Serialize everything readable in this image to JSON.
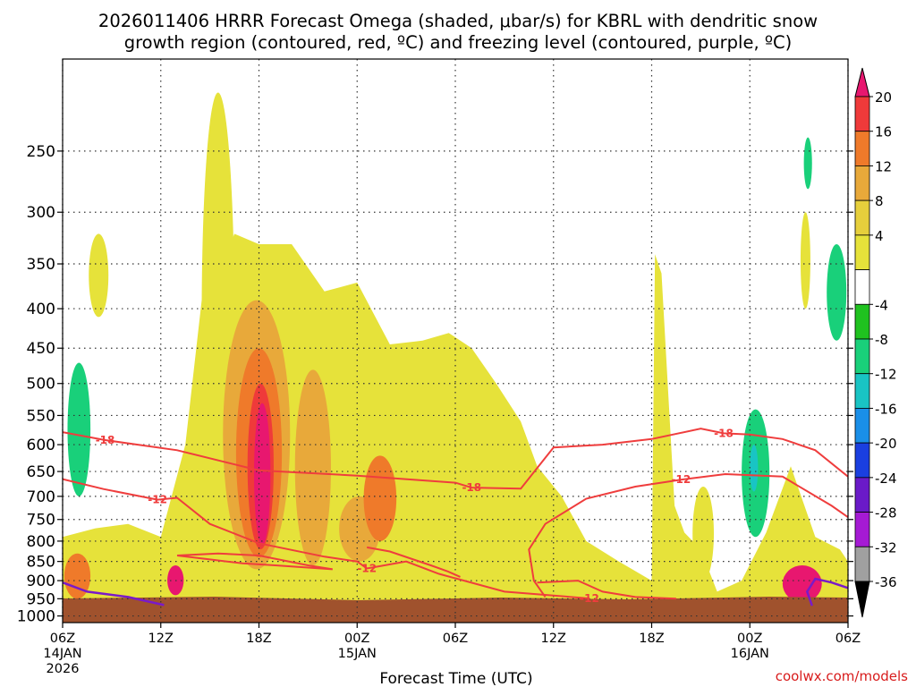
{
  "chart_data": {
    "type": "heatmap",
    "title_line1": "2026011406 HRRR Forecast Omega (shaded, μbar/s) for KBRL with dendritic snow",
    "title_line2": "growth region (contoured, red, ºC) and freezing level (contoured, purple, ºC)",
    "xlabel": "Forecast Time (UTC)",
    "credit": "coolwx.com/models",
    "x_range_hours": [
      0,
      48
    ],
    "y_range_hpa": [
      1020,
      190
    ],
    "y_ticks": [
      250,
      300,
      350,
      400,
      450,
      500,
      550,
      600,
      650,
      700,
      750,
      800,
      850,
      900,
      950,
      1000
    ],
    "x_ticks": [
      {
        "hour": 0,
        "label": "06Z",
        "sub": "14JAN",
        "sub2": "2026"
      },
      {
        "hour": 6,
        "label": "12Z",
        "sub": "",
        "sub2": ""
      },
      {
        "hour": 12,
        "label": "18Z",
        "sub": "",
        "sub2": ""
      },
      {
        "hour": 18,
        "label": "00Z",
        "sub": "15JAN",
        "sub2": ""
      },
      {
        "hour": 24,
        "label": "06Z",
        "sub": "",
        "sub2": ""
      },
      {
        "hour": 30,
        "label": "12Z",
        "sub": "",
        "sub2": ""
      },
      {
        "hour": 36,
        "label": "18Z",
        "sub": "",
        "sub2": ""
      },
      {
        "hour": 42,
        "label": "00Z",
        "sub": "16JAN",
        "sub2": ""
      },
      {
        "hour": 48,
        "label": "06Z",
        "sub": "",
        "sub2": ""
      }
    ],
    "colorbar": {
      "levels": [
        20,
        16,
        12,
        8,
        4,
        -4,
        -8,
        -12,
        -16,
        -20,
        -24,
        -28,
        -32,
        -36
      ],
      "colors": [
        "#e8176f",
        "#ef3a3a",
        "#ef7a2a",
        "#e8a93a",
        "#e6cf3c",
        "#e6e23a",
        "#ffffff",
        "#1fc21f",
        "#19d07a",
        "#19c4c4",
        "#1a8fe8",
        "#1a3fe0",
        "#6a1ac8",
        "#a51ad4",
        "#a0a0a0",
        "#000000"
      ]
    },
    "legend": {
      "position": "right"
    },
    "series": [
      {
        "name": "omega (μbar/s)",
        "kind": "shaded",
        "blobs": [
          {
            "value": 4,
            "hours": [
              8.5,
              10.5
            ],
            "hpa": [
              800,
              210
            ]
          },
          {
            "value": 8,
            "hours": [
              9.8,
              13.9
            ],
            "hpa": [
              870,
              390
            ]
          },
          {
            "value": 12,
            "hours": [
              10.6,
              13.4
            ],
            "hpa": [
              840,
              450
            ]
          },
          {
            "value": 16,
            "hours": [
              11.3,
              12.9
            ],
            "hpa": [
              820,
              500
            ]
          },
          {
            "value": 20,
            "hours": [
              11.7,
              12.7
            ],
            "hpa": [
              810,
              530
            ]
          },
          {
            "value": 8,
            "hours": [
              14.2,
              16.4
            ],
            "hpa": [
              860,
              480
            ]
          },
          {
            "value": 8,
            "hours": [
              16.9,
              19.4
            ],
            "hpa": [
              850,
              700
            ]
          },
          {
            "value": 12,
            "hours": [
              18.4,
              20.4
            ],
            "hpa": [
              800,
              620
            ]
          },
          {
            "value": 20,
            "hours": [
              44.0,
              46.4
            ],
            "hpa": [
              960,
              860
            ]
          },
          {
            "value": 12,
            "hours": [
              0.1,
              1.7
            ],
            "hpa": [
              950,
              830
            ]
          },
          {
            "value": 20,
            "hours": [
              6.4,
              7.4
            ],
            "hpa": [
              940,
              860
            ]
          },
          {
            "value": -8,
            "hours": [
              0.3,
              1.7
            ],
            "hpa": [
              700,
              470
            ]
          },
          {
            "value": -8,
            "hours": [
              41.5,
              43.2
            ],
            "hpa": [
              790,
              540
            ]
          },
          {
            "value": -8,
            "hours": [
              46.7,
              47.9
            ],
            "hpa": [
              440,
              330
            ]
          },
          {
            "value": -8,
            "hours": [
              45.3,
              45.8
            ],
            "hpa": [
              280,
              240
            ]
          },
          {
            "value": -12,
            "hours": [
              42.0,
              42.5
            ],
            "hpa": [
              690,
              600
            ]
          }
        ]
      },
      {
        "name": "dendritic snow growth region",
        "kind": "contour",
        "labels": [
          {
            "text": "-18",
            "hour": 2.6,
            "hpa": 592
          },
          {
            "text": "-12",
            "hour": 5.8,
            "hpa": 707
          },
          {
            "text": "-12",
            "hour": 18.6,
            "hpa": 868
          },
          {
            "text": "-18",
            "hour": 25.0,
            "hpa": 682
          },
          {
            "text": "-12",
            "hour": 37.8,
            "hpa": 666
          },
          {
            "text": "-18",
            "hour": 40.4,
            "hpa": 580
          },
          {
            "text": "-12",
            "hour": 32.2,
            "hpa": 949
          }
        ],
        "line_paths": [
          [
            [
              0,
              578
            ],
            [
              2.6,
              592
            ],
            [
              7,
              610
            ],
            [
              12,
              648
            ],
            [
              18,
              658
            ],
            [
              24,
              672
            ],
            [
              25,
              682
            ],
            [
              28,
              684
            ],
            [
              30,
              605
            ],
            [
              33,
              600
            ],
            [
              36,
              590
            ],
            [
              39,
              572
            ],
            [
              40.4,
              580
            ],
            [
              42,
              582
            ],
            [
              44,
              590
            ],
            [
              46,
              610
            ],
            [
              48,
              660
            ]
          ],
          [
            [
              0,
              665
            ],
            [
              2.5,
              685
            ],
            [
              5.8,
              707
            ],
            [
              7,
              703
            ],
            [
              9,
              760
            ],
            [
              12,
              805
            ],
            [
              16,
              838
            ],
            [
              18,
              850
            ],
            [
              18.6,
              868
            ],
            [
              21,
              850
            ],
            [
              23,
              882
            ],
            [
              27,
              930
            ],
            [
              32.2,
              949
            ]
          ],
          [
            [
              29.5,
              945
            ],
            [
              28.8,
              900
            ],
            [
              28.5,
              820
            ],
            [
              29.5,
              760
            ],
            [
              32,
              705
            ],
            [
              35,
              680
            ],
            [
              37.8,
              666
            ],
            [
              40.5,
              655
            ],
            [
              44,
              660
            ],
            [
              47,
              720
            ],
            [
              48,
              745
            ]
          ],
          [
            [
              7,
              835
            ],
            [
              9,
              845
            ],
            [
              11,
              855
            ],
            [
              13,
              860
            ],
            [
              16.5,
              870
            ],
            [
              15,
              860
            ],
            [
              12,
              835
            ],
            [
              9.5,
              830
            ],
            [
              7,
              835
            ]
          ],
          [
            [
              18.6,
              815
            ],
            [
              20,
              825
            ],
            [
              22.5,
              860
            ],
            [
              23.5,
              875
            ],
            [
              24.3,
              890
            ]
          ],
          [
            [
              29,
              905
            ],
            [
              31.5,
              900
            ],
            [
              33,
              930
            ],
            [
              35,
              945
            ],
            [
              37.5,
              950
            ]
          ]
        ]
      },
      {
        "name": "freezing level",
        "kind": "contour",
        "line_paths": [
          [
            [
              0,
              905
            ],
            [
              1.5,
              930
            ],
            [
              4,
              945
            ],
            [
              6.2,
              968
            ]
          ],
          [
            [
              45.8,
              970
            ],
            [
              45.5,
              930
            ],
            [
              46,
              895
            ],
            [
              47,
              905
            ],
            [
              48,
              920
            ]
          ]
        ]
      }
    ]
  }
}
